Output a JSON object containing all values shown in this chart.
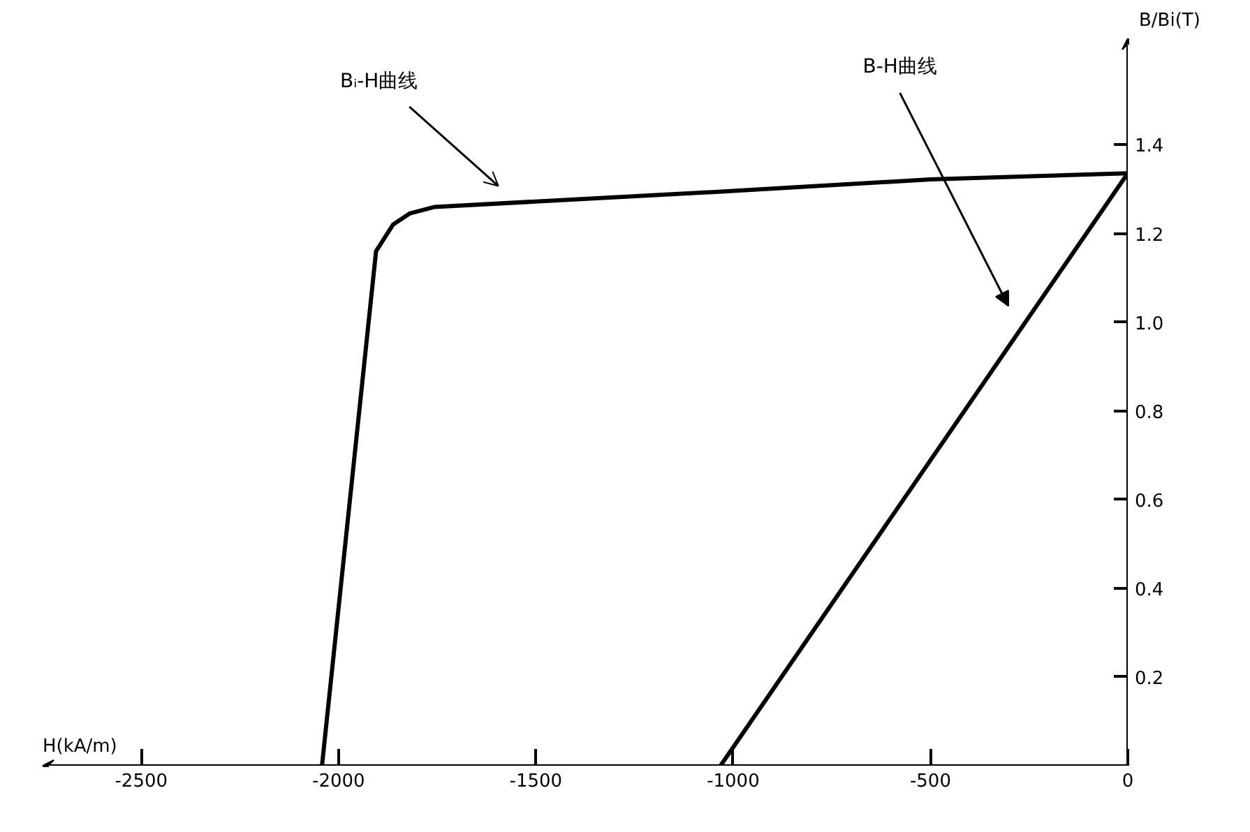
{
  "chart_data": {
    "type": "line",
    "xlabel": "H(kA/m)",
    "ylabel": "B/Bi(T)",
    "xlim": [
      -2750,
      0
    ],
    "ylim": [
      0,
      1.64
    ],
    "xticks": [
      {
        "value": -2500,
        "label": "-2500"
      },
      {
        "value": -2000,
        "label": "-2000"
      },
      {
        "value": -1500,
        "label": "-1500"
      },
      {
        "value": -1000,
        "label": "-1000"
      },
      {
        "value": -500,
        "label": "-500"
      },
      0
    ],
    "yticks": [
      0.2,
      0.4,
      0.6,
      0.8,
      {
        "value": 1.0,
        "label": "1.0"
      },
      1.2,
      1.4
    ],
    "grid": false,
    "marker": "none",
    "line_style": "solid",
    "series": [
      {
        "color": "#000000",
        "x": [
          -2042,
          -1905,
          -1862,
          -1820,
          -1756,
          -1000,
          -500,
          0
        ],
        "values": [
          0,
          1.16,
          1.22,
          1.245,
          1.26,
          1.296,
          1.322,
          1.336
        ]
      },
      {
        "color": "#000000",
        "x": [
          -1032,
          0
        ],
        "values": [
          0,
          1.336
        ]
      }
    ],
    "annotations": [
      "Bᵢ-H曲线",
      "B-H曲线"
    ]
  }
}
